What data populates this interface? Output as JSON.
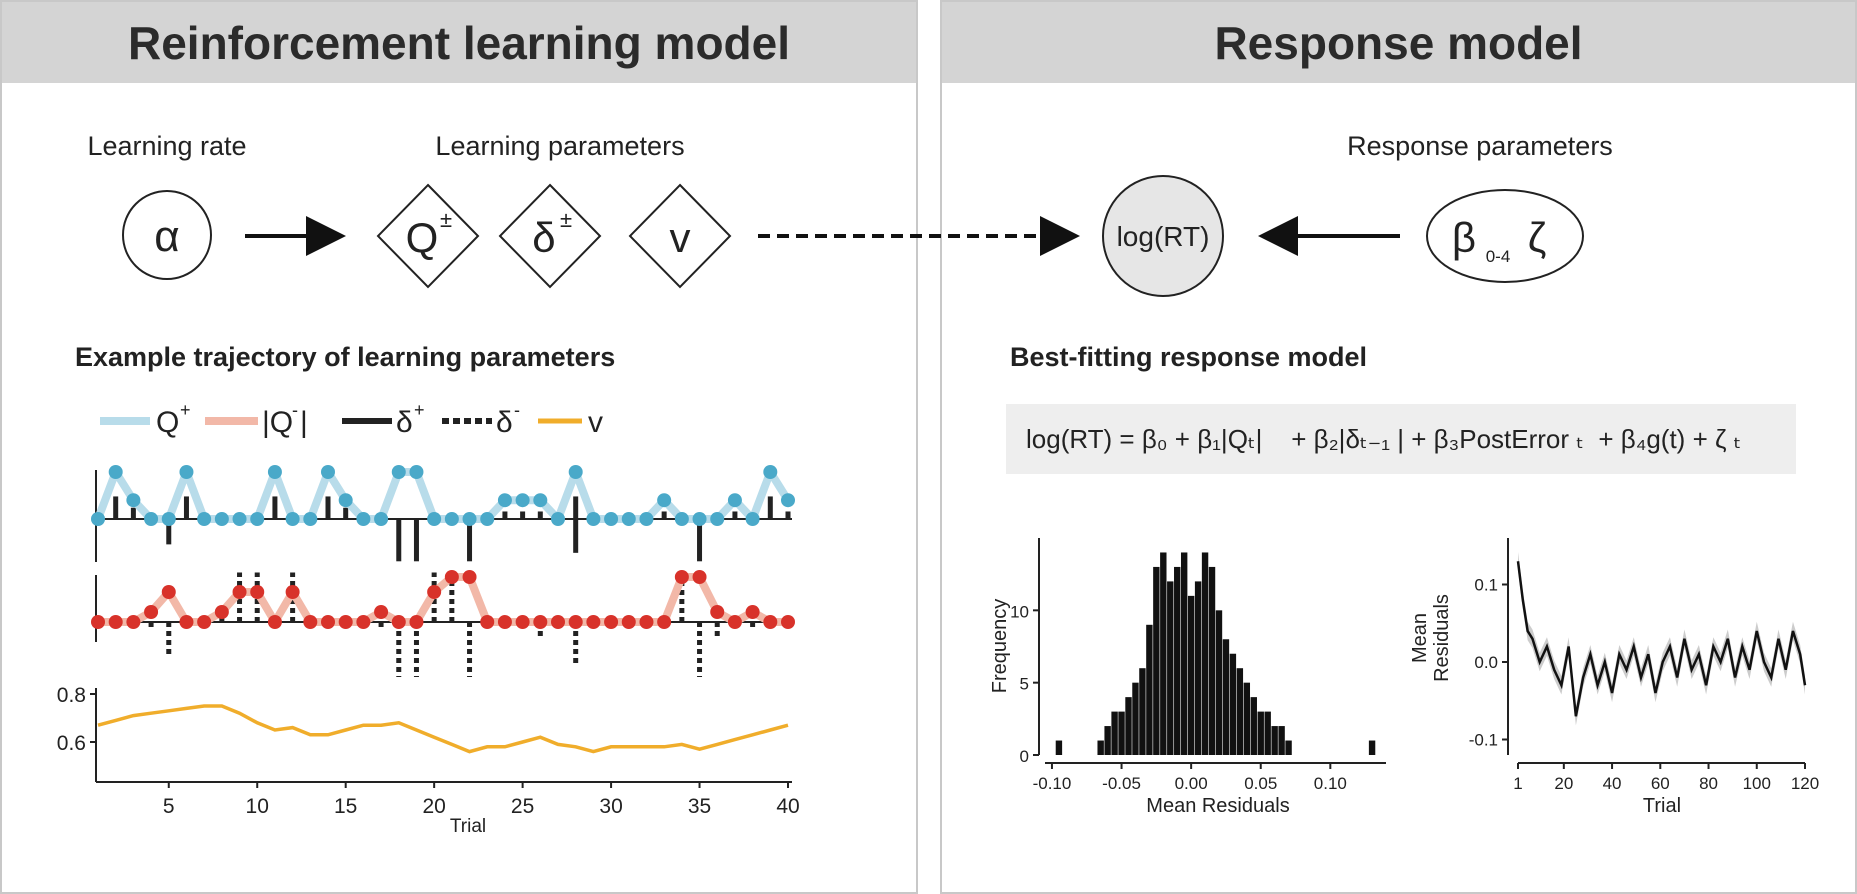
{
  "left_header": "Reinforcement learning model",
  "right_header": "Response model",
  "learning_rate_label": "Learning rate",
  "learning_params_label": "Learning parameters",
  "response_params_label": "Response parameters",
  "alpha_symbol": "α",
  "q_symbol": "Q",
  "q_sup": "±",
  "delta_symbol": "δ",
  "delta_sup": "±",
  "v_symbol": "v",
  "logrt_label": "log(RT)",
  "beta_symbol": "β",
  "beta_sub": "0-4",
  "zeta_symbol": "ζ",
  "trajectory_title": "Example trajectory of learning parameters",
  "legend": {
    "q_plus": "Q",
    "q_plus_sup": "+",
    "q_minus": "|Q",
    "q_minus_sup": "-",
    "q_minus_close": "|",
    "delta_plus": "δ",
    "delta_plus_sup": "+",
    "delta_minus": "δ",
    "delta_minus_sup": "-",
    "v": "v"
  },
  "best_fit_title": "Best-fitting response model",
  "equation": "log(RT) = β₀ + β₁|Qₜ|    + β₂|δₜ₋₁ | + β₃PostError ₜ  + β₄g(t) + ζ ₜ",
  "colors": {
    "q_plus_line": "#b8dcea",
    "q_plus_dot": "#4aa9c9",
    "q_minus_line": "#f2b8a8",
    "q_minus_dot": "#d8322a",
    "v_line": "#f0ad2b",
    "header_bg": "#d4d4d4",
    "node_fill": "#e6e6e6",
    "equation_bg": "#eeeeee"
  },
  "chart_data": [
    {
      "type": "line",
      "xlabel": "Trial",
      "xticks": [
        "5",
        "10",
        "15",
        "20",
        "25",
        "30",
        "35",
        "40"
      ],
      "yticks": [
        "0.8",
        "0.6"
      ],
      "x": [
        1,
        2,
        3,
        4,
        5,
        6,
        7,
        8,
        9,
        10,
        11,
        12,
        13,
        14,
        15,
        16,
        17,
        18,
        19,
        20,
        21,
        22,
        23,
        24,
        25,
        26,
        27,
        28,
        29,
        30,
        31,
        32,
        33,
        34,
        35,
        36,
        37,
        38,
        39,
        40
      ],
      "series": [
        {
          "name": "Q⁺",
          "values": [
            0.0,
            1.0,
            0.4,
            0.0,
            0.0,
            1.0,
            0.0,
            0.0,
            0.0,
            0.0,
            1.0,
            0.0,
            0.0,
            1.0,
            0.4,
            0.0,
            0.0,
            1.0,
            1.0,
            0.0,
            0.0,
            0.0,
            0.0,
            0.4,
            0.4,
            0.4,
            0.0,
            1.0,
            0.0,
            0.0,
            0.0,
            0.0,
            0.4,
            0.0,
            0.0,
            0.0,
            0.4,
            0.0,
            1.0,
            0.4
          ]
        },
        {
          "name": "|Q⁻|",
          "values": [
            0.0,
            0.0,
            0.0,
            0.2,
            0.6,
            0.0,
            0.0,
            0.2,
            0.6,
            0.6,
            0.0,
            0.6,
            0.0,
            0.0,
            0.0,
            0.0,
            0.2,
            0.0,
            0.0,
            0.6,
            0.9,
            0.9,
            0.0,
            0.0,
            0.0,
            0.0,
            0.0,
            0.0,
            0.0,
            0.0,
            0.0,
            0.0,
            0.0,
            0.9,
            0.9,
            0.2,
            0.0,
            0.2,
            0.0,
            0.0
          ]
        },
        {
          "name": "δ⁺",
          "values": [
            0.0,
            0.6,
            0.3,
            0.0,
            0.0,
            0.6,
            0.0,
            0.0,
            0.0,
            0.0,
            0.6,
            0.0,
            0.0,
            0.6,
            0.3,
            0.0,
            0.0,
            0.0,
            0.0,
            0.0,
            0.0,
            0.0,
            0.0,
            0.2,
            0.2,
            0.2,
            0.0,
            0.6,
            0.0,
            0.0,
            0.0,
            0.0,
            0.2,
            0.0,
            0.0,
            0.0,
            0.2,
            0.0,
            0.6,
            0.2
          ]
        },
        {
          "name": "δ⁻",
          "values": [
            0.0,
            0.0,
            0.0,
            -0.1,
            -0.6,
            0.0,
            0.0,
            0.3,
            0.9,
            0.9,
            0.0,
            0.9,
            0.0,
            0.0,
            0.0,
            0.0,
            -0.1,
            -1.0,
            -1.0,
            0.9,
            0.9,
            -1.0,
            0.0,
            0.0,
            0.0,
            -0.3,
            0.0,
            -0.8,
            0.0,
            0.0,
            0.0,
            0.0,
            0.0,
            0.9,
            -1.0,
            -0.3,
            0.0,
            -0.1,
            0.0,
            0.0
          ]
        },
        {
          "name": "v",
          "values": [
            0.67,
            0.69,
            0.71,
            0.72,
            0.73,
            0.74,
            0.75,
            0.75,
            0.72,
            0.68,
            0.65,
            0.66,
            0.63,
            0.63,
            0.65,
            0.67,
            0.67,
            0.68,
            0.65,
            0.62,
            0.59,
            0.56,
            0.58,
            0.58,
            0.6,
            0.62,
            0.59,
            0.58,
            0.56,
            0.58,
            0.58,
            0.58,
            0.58,
            0.59,
            0.57,
            0.59,
            0.61,
            0.63,
            0.65,
            0.67
          ]
        }
      ]
    },
    {
      "type": "bar",
      "xlabel": "Mean Residuals",
      "ylabel": "Frequency",
      "xticks": [
        "-0.10",
        "-0.05",
        "0.00",
        "0.05",
        "0.10"
      ],
      "yticks": [
        "0",
        "5",
        "10"
      ],
      "xlim": [
        -0.105,
        0.14
      ],
      "ylim": [
        0,
        15
      ],
      "x": [
        -0.095,
        -0.065,
        -0.06,
        -0.055,
        -0.05,
        -0.045,
        -0.04,
        -0.035,
        -0.03,
        -0.025,
        -0.02,
        -0.015,
        -0.01,
        -0.005,
        0.0,
        0.005,
        0.01,
        0.015,
        0.02,
        0.025,
        0.03,
        0.035,
        0.04,
        0.045,
        0.05,
        0.055,
        0.06,
        0.065,
        0.07,
        0.13
      ],
      "values": [
        1,
        1,
        2,
        3,
        3,
        4,
        5,
        6,
        9,
        13,
        14,
        12,
        13,
        14,
        11,
        12,
        14,
        13,
        10,
        8,
        7,
        6,
        5,
        4,
        3,
        3,
        2,
        2,
        1,
        1
      ]
    },
    {
      "type": "line",
      "xlabel": "Trial",
      "ylabel": "Mean Residuals",
      "xticks": [
        "1",
        "20",
        "40",
        "60",
        "80",
        "100",
        "120"
      ],
      "yticks": [
        "0.1",
        "0.0",
        "-0.1"
      ],
      "xlim": [
        1,
        120
      ],
      "ylim": [
        -0.12,
        0.16
      ],
      "x": [
        1,
        3,
        5,
        7,
        10,
        13,
        16,
        19,
        22,
        25,
        28,
        31,
        34,
        37,
        40,
        43,
        46,
        49,
        52,
        55,
        58,
        61,
        64,
        67,
        70,
        73,
        76,
        79,
        82,
        85,
        88,
        91,
        94,
        97,
        100,
        103,
        106,
        109,
        112,
        115,
        118,
        120
      ],
      "values": [
        0.13,
        0.08,
        0.04,
        0.03,
        0.0,
        0.02,
        -0.01,
        -0.03,
        0.02,
        -0.07,
        -0.02,
        0.01,
        -0.03,
        0.0,
        -0.04,
        0.01,
        -0.01,
        0.02,
        -0.02,
        0.01,
        -0.04,
        0.0,
        0.02,
        -0.02,
        0.03,
        -0.01,
        0.01,
        -0.03,
        0.02,
        0.0,
        0.03,
        -0.02,
        0.02,
        -0.01,
        0.04,
        0.0,
        -0.02,
        0.03,
        -0.01,
        0.04,
        0.01,
        -0.03
      ]
    }
  ]
}
